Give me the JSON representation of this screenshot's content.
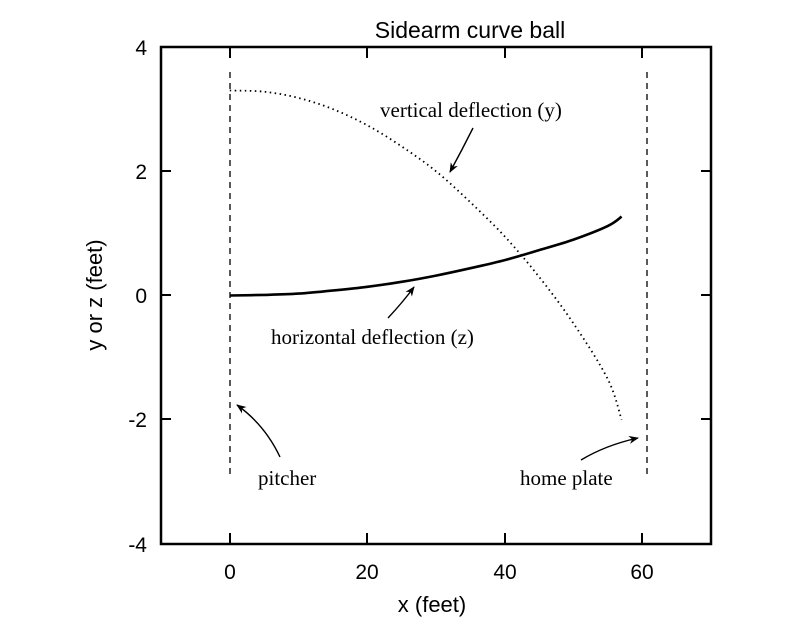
{
  "chart_data": {
    "type": "line",
    "title": "Sidearm curve ball",
    "xlabel": "x (feet)",
    "ylabel": "y or z (feet)",
    "xlim": [
      -10,
      70
    ],
    "ylim": [
      -4,
      4
    ],
    "xticks": [
      0,
      20,
      40,
      60
    ],
    "yticks": [
      -4,
      -2,
      0,
      2,
      4
    ],
    "xtick_labels": [
      "0",
      "20",
      "40",
      "60"
    ],
    "ytick_labels": [
      "-4",
      "-2",
      "0",
      "2",
      "4"
    ],
    "grid": false,
    "legend": null,
    "series": [
      {
        "name": "vertical deflection (y)",
        "style": "dotted",
        "x": [
          0,
          5,
          10,
          15,
          20,
          25,
          30,
          35,
          40,
          45,
          50,
          55,
          57
        ],
        "values": [
          3.3,
          3.28,
          3.18,
          3.0,
          2.74,
          2.4,
          2.0,
          1.5,
          0.95,
          0.3,
          -0.45,
          -1.35,
          -2.0
        ]
      },
      {
        "name": "horizontal deflection (z)",
        "style": "solid",
        "x": [
          0,
          5,
          10,
          15,
          20,
          25,
          30,
          35,
          40,
          45,
          50,
          55,
          57
        ],
        "values": [
          0.0,
          0.01,
          0.03,
          0.08,
          0.14,
          0.22,
          0.32,
          0.44,
          0.57,
          0.73,
          0.9,
          1.12,
          1.27
        ]
      }
    ],
    "reference_lines": [
      {
        "name": "pitcher",
        "x": 0,
        "y_range": [
          -3,
          3.6
        ],
        "style": "dashed"
      },
      {
        "name": "home plate",
        "x": 60.5,
        "y_range": [
          -3,
          3.6
        ],
        "style": "dashed"
      }
    ],
    "annotations": [
      {
        "text": "vertical deflection (y)",
        "text_pos": [
          37,
          3.0
        ],
        "arrow_to": [
          32,
          1.95
        ]
      },
      {
        "text": "horizontal deflection (z)",
        "text_pos": [
          28,
          -0.7
        ],
        "arrow_to": [
          27,
          0.2
        ]
      },
      {
        "text": "pitcher",
        "text_pos": [
          8,
          -2.9
        ],
        "arrow_to": [
          1,
          -1.8
        ]
      },
      {
        "text": "home plate",
        "text_pos": [
          50,
          -2.9
        ],
        "arrow_to": [
          59.5,
          -2.3
        ]
      }
    ]
  },
  "labels": {
    "title": "Sidearm curve ball",
    "xlabel": "x (feet)",
    "ylabel": "y or z (feet)",
    "ann_vertical": "vertical deflection (y)",
    "ann_horizontal": "horizontal deflection (z)",
    "ann_pitcher": "pitcher",
    "ann_home": "home plate"
  },
  "ticks": {
    "x": [
      "0",
      "20",
      "40",
      "60"
    ],
    "y": [
      "4",
      "2",
      "0",
      "-2",
      "-4"
    ]
  }
}
